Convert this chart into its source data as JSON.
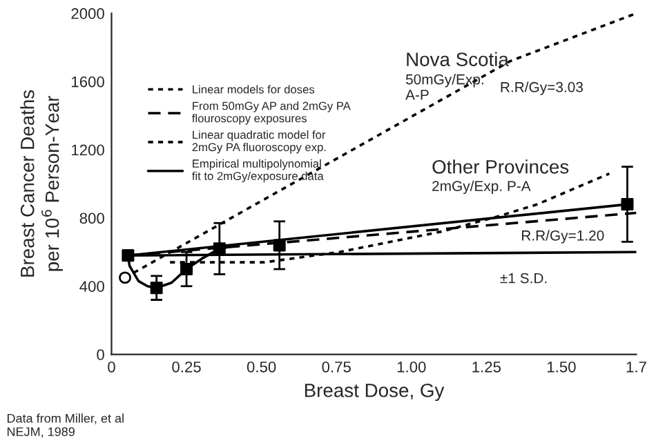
{
  "chart_data": {
    "type": "line",
    "xlabel": "Breast Dose, Gy",
    "ylabel": "Breast Cancer Deaths\nper 10$^{6}$ Person-Year",
    "xlim": [
      0,
      1.75
    ],
    "ylim": [
      0,
      2000
    ],
    "xticks": [
      0,
      0.25,
      {
        "value": 0.5,
        "label": "0.50"
      },
      0.75,
      {
        "value": 1.0,
        "label": "1.00"
      },
      1.25,
      {
        "value": 1.5,
        "label": "1.50"
      },
      {
        "value": 1.75,
        "label": "1.7"
      }
    ],
    "yticks": [
      0,
      400,
      800,
      1200,
      1600,
      2000
    ],
    "grid": false,
    "legend": "top left",
    "marker": "none",
    "series": [
      {
        "name": "Linear models for doses",
        "color": "#000000",
        "line_style": "dotted",
        "x": [
          0.045,
          1.33,
          1.75
        ],
        "values": [
          450,
          1720,
          2000
        ]
      },
      {
        "name": "From 50mGy AP and 2mGy PA\nflouroscopy exposures",
        "color": "#000000",
        "line_style": "dashed",
        "x": [
          0.055,
          1.75
        ],
        "values": [
          580,
          830
        ]
      },
      {
        "name": "Linear quadratic model for\n2mGy PA fluoroscopy exp.",
        "color": "#000000",
        "line_style": "dotted",
        "x": [
          0.195,
          0.51,
          0.76,
          1.1,
          1.29,
          1.42,
          1.66
        ],
        "values": [
          540,
          540,
          600,
          720,
          810,
          880,
          1060
        ]
      },
      {
        "name": "Empirical multipolynomial\nfit to 2mGy/exposure data",
        "color": "#000000",
        "line_style": "solid",
        "x": [
          0.055,
          0.06,
          0.09,
          0.12,
          0.15,
          0.2,
          0.25,
          0.3,
          0.36,
          0.42
        ],
        "values": [
          580,
          520,
          430,
          400,
          390,
          420,
          500,
          560,
          620,
          640
        ]
      },
      {
        "color": "#000000",
        "line_style": "solid",
        "x": [
          0.055,
          1.72
        ],
        "values": [
          580,
          880
        ]
      },
      {
        "color": "#000000",
        "line_style": "solid",
        "x": [
          0.055,
          1.75
        ],
        "values": [
          580,
          600
        ]
      },
      {
        "type": "scatter",
        "color": "#000000",
        "marker": "square",
        "x": [
          0.055,
          0.15,
          0.25,
          0.36,
          0.56,
          1.72
        ],
        "values": [
          580,
          390,
          500,
          620,
          640,
          880
        ],
        "errors": [
          30,
          70,
          100,
          150,
          140,
          220
        ]
      },
      {
        "type": "scatter",
        "color": "#000000",
        "marker": "circle",
        "x": [
          0.045
        ],
        "values": [
          450
        ]
      }
    ],
    "annotations": [
      "Nova Scotia",
      "50mGy/Exp.\nA-P",
      "R.R/Gy=3.03",
      "Other Provinces",
      "2mGy/Exp. P-A",
      "R.R/Gy=1.20",
      "±1 S.D.",
      "Data from Miller, et al\nNEJM, 1989"
    ]
  }
}
